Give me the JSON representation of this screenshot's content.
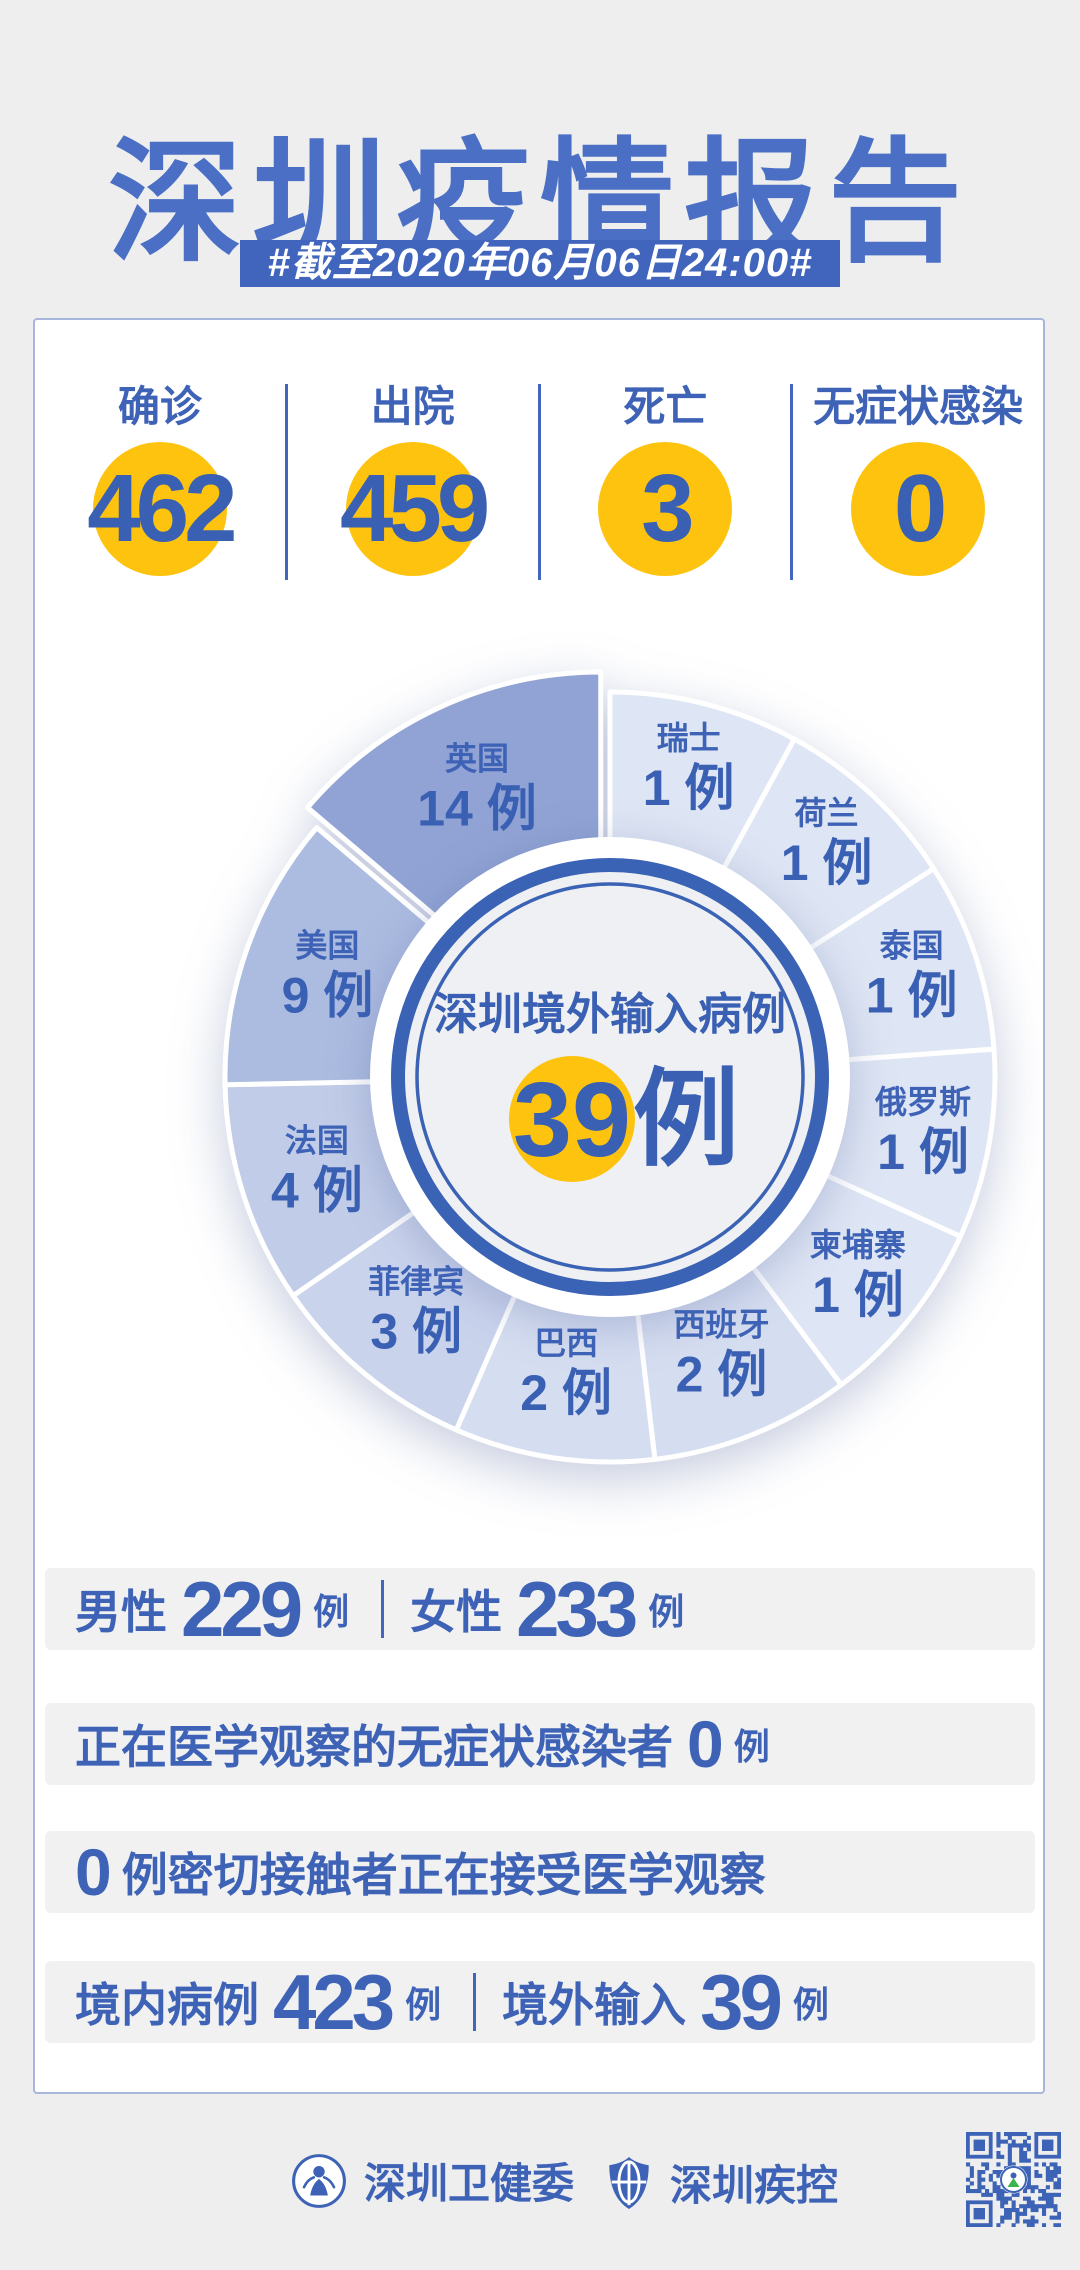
{
  "page": {
    "title": "深圳疫情报告",
    "date_badge": "#截至2020年06月06日24:00#"
  },
  "stats": {
    "items": [
      {
        "label": "确诊",
        "value": "462"
      },
      {
        "label": "出院",
        "value": "459"
      },
      {
        "label": "死亡",
        "value": "3"
      },
      {
        "label": "无症状感染",
        "value": "0"
      }
    ]
  },
  "chart_data": {
    "type": "pie",
    "title": "深圳境外输入病例",
    "center_total": {
      "value": "39",
      "unit": "例"
    },
    "unit": "例",
    "order": "clockwise-from-top",
    "legend_position": "labels-on-slices",
    "total": 39,
    "series": [
      {
        "name": "瑞士",
        "value": 1
      },
      {
        "name": "荷兰",
        "value": 1
      },
      {
        "name": "泰国",
        "value": 1
      },
      {
        "name": "俄罗斯",
        "value": 1
      },
      {
        "name": "柬埔寨",
        "value": 1
      },
      {
        "name": "西班牙",
        "value": 2
      },
      {
        "name": "巴西",
        "value": 2
      },
      {
        "name": "菲律宾",
        "value": 3
      },
      {
        "name": "法国",
        "value": 4
      },
      {
        "name": "美国",
        "value": 9
      },
      {
        "name": "英国",
        "value": 14,
        "exploded": true
      }
    ],
    "slice_colors": {
      "1": "#dee5f4",
      "2": "#d5ddf0",
      "3": "#cad3ec",
      "4": "#c1cce8",
      "9": "#acbbe0",
      "14": "#91a3d4"
    }
  },
  "summary": {
    "gender": {
      "left_label": "男性",
      "left_value": "229",
      "left_unit": "例",
      "right_label": "女性",
      "right_value": "233",
      "right_unit": "例"
    },
    "observation": {
      "label": "正在医学观察的无症状感染者",
      "value": "0",
      "unit": "例"
    },
    "contacts": {
      "value": "0",
      "label": "例密切接触者正在接受医学观察"
    },
    "origin": {
      "left_label": "境内病例",
      "left_value": "423",
      "left_unit": "例",
      "right_label": "境外输入",
      "right_value": "39",
      "right_unit": "例"
    }
  },
  "footer": {
    "org_health": "深圳卫健委",
    "org_cdc": "深圳疾控"
  },
  "colors": {
    "title_blue": "#4a6fc4",
    "primary_blue": "#3e63b6",
    "badge_blue": "#4165bd",
    "divider_blue": "#4266be",
    "accent_yellow": "#fdc30e",
    "page_bg": "#eeeeef",
    "card_bg": "#ffffff",
    "card_border": "#a9b6dc",
    "row_bg": "#f1f1f2",
    "qr_blue": "#3c63b5",
    "qr_logo_green": "#3cb54a"
  }
}
